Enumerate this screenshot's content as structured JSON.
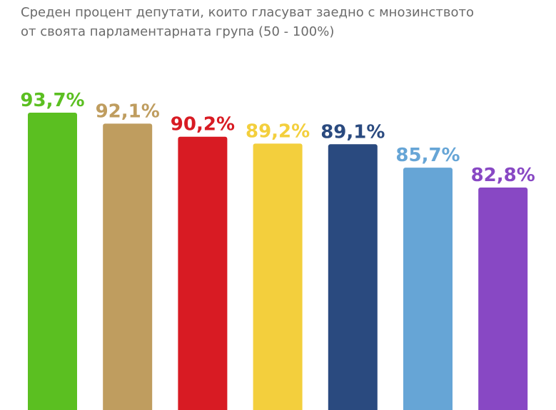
{
  "subtitle_lines": [
    "Среден процент депутати, които гласуват заедно с мнозинството",
    "от своята парламентарната група (50 - 100%)"
  ],
  "chart_data": {
    "type": "bar",
    "title": "",
    "subtitle": "Среден процент депутати, които гласуват заедно с мнозинството от своята парламентарната група (50 - 100%)",
    "xlabel": "",
    "ylabel": "",
    "ylim": [
      50,
      100
    ],
    "grid": false,
    "legend": "none",
    "values": [
      93.7,
      92.1,
      90.2,
      89.2,
      89.1,
      85.7,
      82.8
    ],
    "labels": [
      "93,7%",
      "92,1%",
      "90,2%",
      "89,2%",
      "89,1%",
      "85,7%",
      "82,8%"
    ],
    "colors": [
      "#5bbf21",
      "#bf9d5f",
      "#d81b23",
      "#f3cf3d",
      "#2a4a7f",
      "#66a5d6",
      "#8848c4"
    ]
  }
}
